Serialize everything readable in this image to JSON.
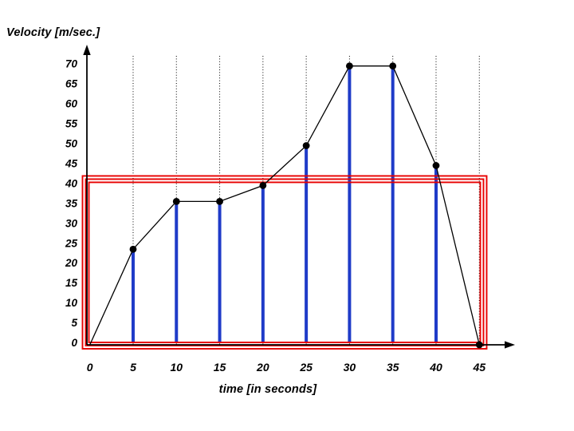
{
  "chart_data": {
    "type": "line",
    "title": "Velocity [m/sec.]",
    "xlabel": "time [in seconds]",
    "x": [
      0,
      5,
      10,
      15,
      20,
      25,
      30,
      35,
      40,
      45
    ],
    "values": [
      0,
      24,
      36,
      36,
      40,
      50,
      70,
      70,
      45,
      0
    ],
    "xticks": [
      0,
      5,
      10,
      15,
      20,
      25,
      30,
      35,
      40,
      45
    ],
    "yticks": [
      0,
      5,
      10,
      15,
      20,
      25,
      30,
      35,
      40,
      45,
      50,
      55,
      60,
      65,
      70
    ],
    "xlim": [
      0,
      49
    ],
    "ylim": [
      0,
      74
    ],
    "grid": "vertical-dotted",
    "legend": "none",
    "line_color": "#000000",
    "marker_color": "#000000",
    "stem_color": "#1F3BC8",
    "axis_color": "#000000",
    "highlight_rect": {
      "style": "triple-outline",
      "color": "#E80000",
      "x0": 0,
      "x1": 45,
      "y0": 0,
      "y1": 43
    }
  }
}
